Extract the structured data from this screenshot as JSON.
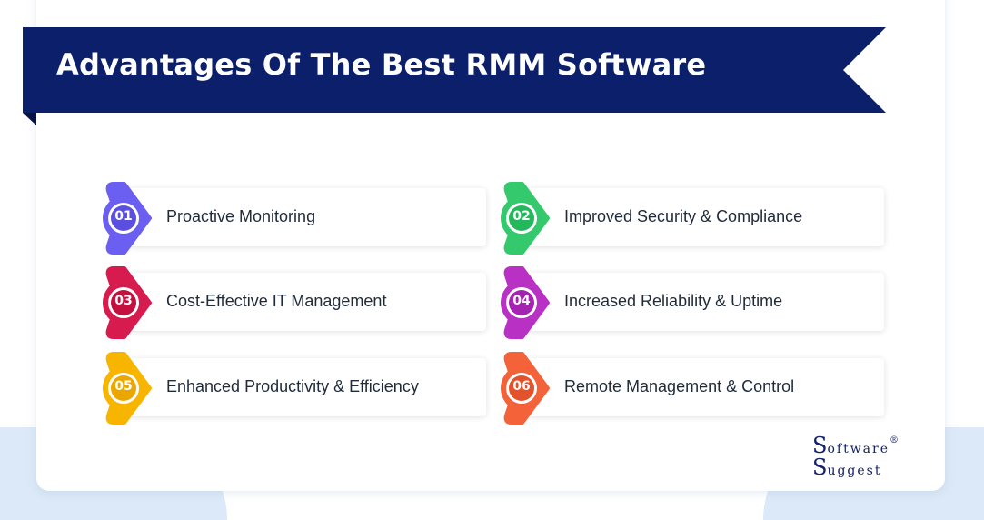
{
  "title": "Advantages Of The Best RMM Software",
  "colors": {
    "banner": "#0b1f6a",
    "background_blob": "#dbe9f8"
  },
  "items": [
    {
      "number": "01",
      "label": "Proactive Monitoring",
      "color": "#6a5ff0",
      "inner": "#5a4fe0"
    },
    {
      "number": "02",
      "label": "Improved Security & Compliance",
      "color": "#33c96c",
      "inner": "#24b85c"
    },
    {
      "number": "03",
      "label": "Cost-Effective IT Management",
      "color": "#d81b4f",
      "inner": "#c4103f"
    },
    {
      "number": "04",
      "label": "Increased Reliability & Uptime",
      "color": "#b930c4",
      "inner": "#a423b0"
    },
    {
      "number": "05",
      "label": "Enhanced Productivity & Efficiency",
      "color": "#f8b500",
      "inner": "#eba600"
    },
    {
      "number": "06",
      "label": "Remote Management & Control",
      "color": "#f4623a",
      "inner": "#e4522b"
    }
  ],
  "logo": {
    "line1_initial": "S",
    "line1": "oftware",
    "line2": "uggest",
    "mark": "®"
  }
}
